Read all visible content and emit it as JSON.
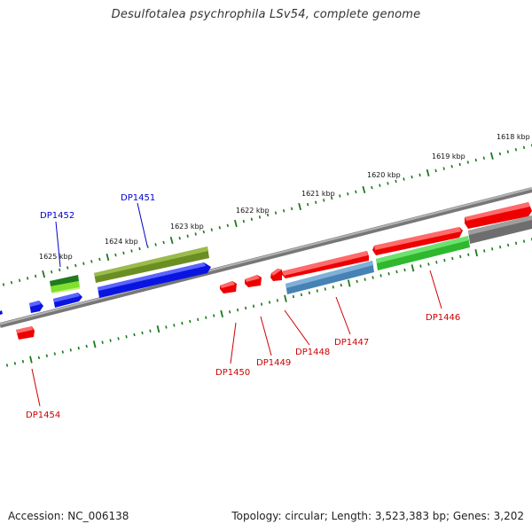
{
  "title": "Desulfotalea psychrophila LSv54, complete genome",
  "footer": {
    "accession": "Accession: NC_006138",
    "summary": "Topology: circular; Length: 3,523,383 bp; Genes: 3,202"
  },
  "scale_labels": [
    "1618 kbp",
    "1619 kbp",
    "1620 kbp",
    "1621 kbp",
    "1622 kbp",
    "1623 kbp",
    "1624 kbp",
    "1625 kbp"
  ],
  "gene_labels": {
    "DP1446": "DP1446",
    "DP1447": "DP1447",
    "DP1448": "DP1448",
    "DP1449": "DP1449",
    "DP1450": "DP1450",
    "DP1451": "DP1451",
    "DP1452": "DP1452",
    "DP1454": "DP1454"
  },
  "colors": {
    "red": "#ee0000",
    "blue": "#0a14e0",
    "olive": "#6b8e23",
    "green": "#2eb82e",
    "steelblue": "#4682b4",
    "gray": "#6e6e6e",
    "darkgreen": "#1e7b1e",
    "label_red": "#cc0000",
    "label_blue": "#0000cc"
  }
}
